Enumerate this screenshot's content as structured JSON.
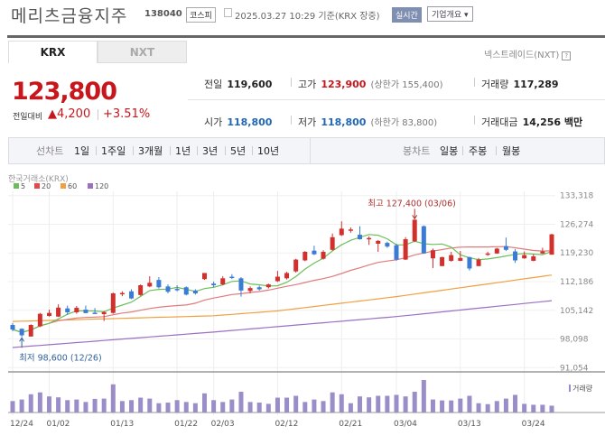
{
  "header": {
    "title": "메리츠금융지주",
    "code": "138040",
    "market": "코스피",
    "as_of": "2025.03.27 10:29 기준(KRX 장중)",
    "realtime": "실시간",
    "overview": "기업개요 ▾"
  },
  "tabs": [
    {
      "label": "KRX",
      "active": true
    },
    {
      "label": "NXT",
      "active": false
    }
  ],
  "nxt_link": "넥스트레이드(NXT)",
  "help": "?",
  "quote": {
    "price": "123,800",
    "change_label": "전일대비",
    "change": "▲4,200",
    "change_pct": "+3.51%",
    "prev_label": "전일",
    "prev": "119,600",
    "high_label": "고가",
    "high": "123,900",
    "upper_limit": "(상한가 155,400)",
    "volume_label": "거래량",
    "volume": "117,289",
    "open_label": "시가",
    "open": "118,800",
    "low_label": "저가",
    "low": "118,800",
    "lower_limit": "(하한가 83,800)",
    "amount_label": "거래대금",
    "amount": "14,256 백만"
  },
  "toolbar": {
    "line_label": "선차트",
    "line_periods": [
      "1일",
      "1주일",
      "3개월",
      "1년",
      "3년",
      "5년",
      "10년"
    ],
    "candle_label": "봉차트",
    "candle_periods": [
      "일봉",
      "주봉",
      "월봉"
    ],
    "candle_selected": "일봉"
  },
  "colors": {
    "up": "#d2302c",
    "down": "#3a7bd5",
    "ma5": "#6bbf59",
    "ma20": "#e07b7b",
    "ma60": "#f0a040",
    "ma120": "#9b6fc4",
    "volume": "#9b8ec8",
    "accent": "#c8161d"
  },
  "chart_data": {
    "type": "candlestick",
    "exchange_label": "한국거래소(KRX)",
    "legend": [
      "5",
      "20",
      "60",
      "120"
    ],
    "y_ticks": [
      "133,318",
      "126,274",
      "119,230",
      "112,186",
      "105,142",
      "98,098",
      "91,054"
    ],
    "ylim": [
      91054,
      133318
    ],
    "x_ticks": [
      {
        "i": 0,
        "label": "12/24"
      },
      {
        "i": 4,
        "label": "01/02"
      },
      {
        "i": 11,
        "label": "01/13"
      },
      {
        "i": 18,
        "label": "01/22"
      },
      {
        "i": 22,
        "label": "02/03"
      },
      {
        "i": 29,
        "label": "02/12"
      },
      {
        "i": 36,
        "label": "02/21"
      },
      {
        "i": 42,
        "label": "03/04"
      },
      {
        "i": 49,
        "label": "03/13"
      },
      {
        "i": 56,
        "label": "03/24"
      }
    ],
    "annotations": {
      "high": "최고 127,400 (03/06)",
      "high_value": 127400,
      "high_index": 44,
      "low": "최저 98,600 (12/26)",
      "low_value": 98600,
      "low_index": 1
    },
    "volume_label": "거래량",
    "ohlc": [
      [
        101540,
        102000,
        100000,
        100430
      ],
      [
        100600,
        100700,
        98600,
        99000
      ],
      [
        98700,
        101700,
        98700,
        101540
      ],
      [
        101200,
        104500,
        101000,
        104280
      ],
      [
        103750,
        105300,
        103600,
        104500
      ],
      [
        103600,
        106600,
        103500,
        105800
      ],
      [
        105600,
        106300,
        104000,
        104650
      ],
      [
        104650,
        106200,
        104300,
        105750
      ],
      [
        105300,
        106300,
        104500,
        104450
      ],
      [
        104550,
        105700,
        104300,
        104300
      ],
      [
        104200,
        105000,
        102500,
        104700
      ],
      [
        104500,
        109500,
        104300,
        109300
      ],
      [
        109300,
        109800,
        108600,
        109400
      ],
      [
        109800,
        110300,
        107900,
        108050
      ],
      [
        108900,
        111500,
        108700,
        111300
      ],
      [
        111000,
        113500,
        110800,
        111900
      ],
      [
        112600,
        113300,
        110500,
        110800
      ],
      [
        111000,
        111500,
        109300,
        109700
      ],
      [
        110400,
        111300,
        109800,
        110100
      ],
      [
        110800,
        111000,
        108800,
        109000
      ],
      [
        110000,
        110300,
        109000,
        109300
      ],
      [
        112800,
        114300,
        112600,
        114300
      ],
      [
        111700,
        112200,
        110800,
        111300
      ],
      [
        111500,
        113500,
        111300,
        113000
      ],
      [
        113400,
        114000,
        112800,
        113200
      ],
      [
        113000,
        113300,
        108500,
        110000
      ],
      [
        109900,
        111000,
        109300,
        110600
      ],
      [
        110800,
        111200,
        110000,
        110300
      ],
      [
        110800,
        111700,
        110500,
        111500
      ],
      [
        112300,
        114800,
        112100,
        113400
      ],
      [
        113000,
        114600,
        112700,
        114300
      ],
      [
        114700,
        117800,
        114400,
        117600
      ],
      [
        117400,
        119700,
        117200,
        119500
      ],
      [
        119800,
        121000,
        118700,
        118900
      ],
      [
        117800,
        119900,
        117600,
        119500
      ],
      [
        120000,
        124000,
        119800,
        123100
      ],
      [
        123600,
        127000,
        123400,
        125200
      ],
      [
        124700,
        125500,
        124200,
        125000
      ],
      [
        123700,
        125800,
        122500,
        122600
      ],
      [
        122900,
        123300,
        121200,
        122900
      ],
      [
        121500,
        122400,
        119500,
        122200
      ],
      [
        121700,
        122000,
        120500,
        120800
      ],
      [
        121100,
        121500,
        117300,
        117600
      ],
      [
        117600,
        123100,
        117500,
        122600
      ],
      [
        122100,
        127400,
        121900,
        127400
      ],
      [
        125800,
        126000,
        119000,
        119100
      ],
      [
        117900,
        120300,
        115500,
        119900
      ],
      [
        116000,
        118300,
        116000,
        118200
      ],
      [
        117300,
        119500,
        117100,
        118700
      ],
      [
        117300,
        119700,
        117200,
        118000
      ],
      [
        118200,
        118300,
        114900,
        115400
      ],
      [
        116000,
        118000,
        116000,
        117600
      ],
      [
        118800,
        119500,
        118500,
        119100
      ],
      [
        119100,
        120500,
        119000,
        120300
      ],
      [
        120900,
        123000,
        119700,
        120000
      ],
      [
        119600,
        120200,
        116800,
        117400
      ],
      [
        117900,
        119600,
        117800,
        118700
      ],
      [
        117300,
        118900,
        117200,
        118400
      ],
      [
        119100,
        120500,
        119000,
        119600
      ],
      [
        118800,
        123900,
        118800,
        123800
      ]
    ],
    "volume_relative": [
      37,
      42,
      59,
      65,
      52,
      49,
      40,
      42,
      34,
      44,
      45,
      91,
      37,
      40,
      48,
      45,
      30,
      32,
      40,
      34,
      30,
      62,
      40,
      34,
      42,
      67,
      34,
      32,
      28,
      48,
      48,
      54,
      34,
      42,
      37,
      65,
      59,
      30,
      52,
      49,
      54,
      54,
      57,
      52,
      67,
      105,
      42,
      39,
      39,
      45,
      54,
      30,
      27,
      37,
      45,
      57,
      28,
      25,
      25,
      22
    ],
    "ma60_points": [
      [
        0,
        102400
      ],
      [
        22,
        103800
      ],
      [
        29,
        105000
      ],
      [
        42,
        108500
      ],
      [
        59,
        113800
      ]
    ],
    "ma120_points": [
      [
        0,
        96000
      ],
      [
        22,
        99800
      ],
      [
        42,
        103600
      ],
      [
        59,
        107500
      ]
    ]
  }
}
